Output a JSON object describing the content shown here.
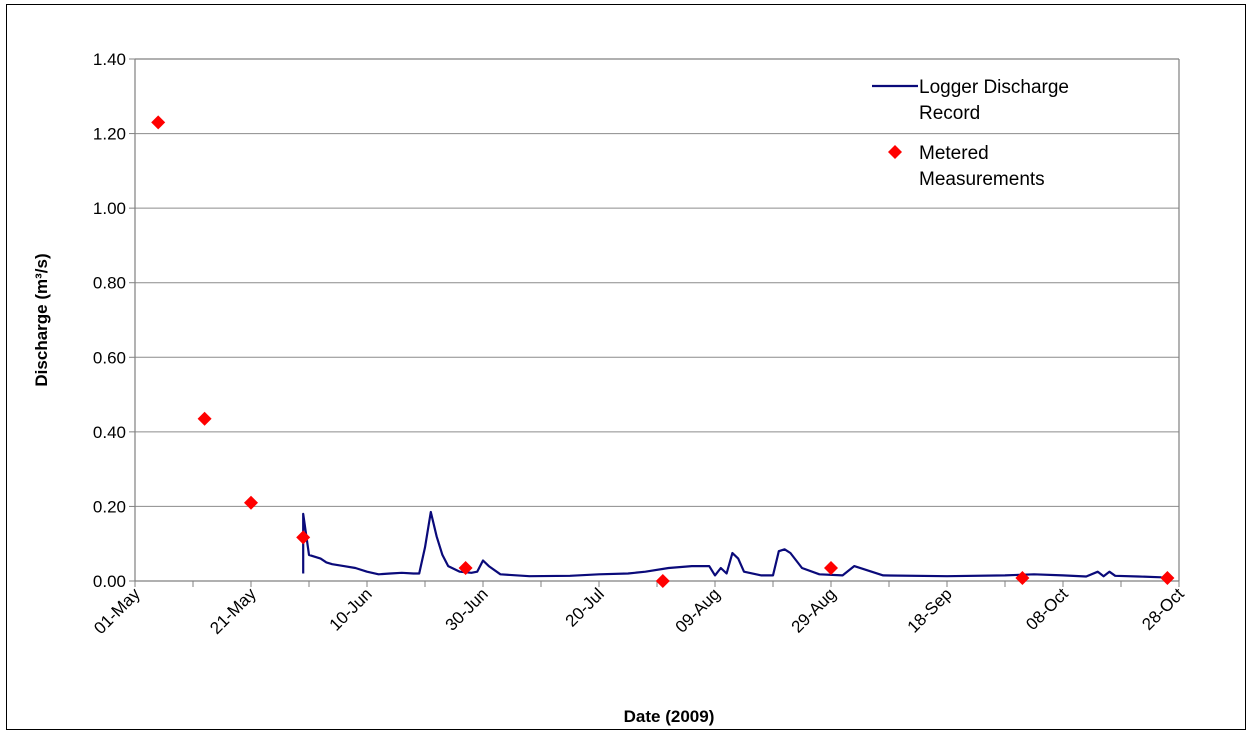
{
  "chart_data": {
    "type": "line",
    "title": "",
    "xlabel": "Date (2009)",
    "ylabel": "Discharge (m³/s)",
    "ylim": [
      0,
      1.4
    ],
    "yticks": [
      "0.00",
      "0.20",
      "0.40",
      "0.60",
      "0.80",
      "1.00",
      "1.20",
      "1.40"
    ],
    "xlim": [
      "2009-05-01",
      "2009-10-28"
    ],
    "xticks": [
      {
        "date": "2009-05-01",
        "label": "01-May"
      },
      {
        "date": "2009-05-21",
        "label": "21-May"
      },
      {
        "date": "2009-06-10",
        "label": "10-Jun"
      },
      {
        "date": "2009-06-30",
        "label": "30-Jun"
      },
      {
        "date": "2009-07-20",
        "label": "20-Jul"
      },
      {
        "date": "2009-08-09",
        "label": "09-Aug"
      },
      {
        "date": "2009-08-29",
        "label": "29-Aug"
      },
      {
        "date": "2009-09-18",
        "label": "18-Sep"
      },
      {
        "date": "2009-10-08",
        "label": "08-Oct"
      },
      {
        "date": "2009-10-28",
        "label": "28-Oct"
      }
    ],
    "grid": "horizontal",
    "legend_position": "top-right",
    "series": [
      {
        "name": "Logger Discharge Record",
        "style": "line",
        "color": "#0a0a7a",
        "points": [
          {
            "x": "2009-05-30",
            "y": 0.02
          },
          {
            "x": "2009-05-30",
            "y": 0.18
          },
          {
            "x": "2009-05-31",
            "y": 0.07
          },
          {
            "x": "2009-06-02",
            "y": 0.06
          },
          {
            "x": "2009-06-03",
            "y": 0.05
          },
          {
            "x": "2009-06-04",
            "y": 0.045
          },
          {
            "x": "2009-06-06",
            "y": 0.04
          },
          {
            "x": "2009-06-08",
            "y": 0.035
          },
          {
            "x": "2009-06-10",
            "y": 0.025
          },
          {
            "x": "2009-06-12",
            "y": 0.018
          },
          {
            "x": "2009-06-14",
            "y": 0.02
          },
          {
            "x": "2009-06-16",
            "y": 0.022
          },
          {
            "x": "2009-06-18",
            "y": 0.02
          },
          {
            "x": "2009-06-19",
            "y": 0.02
          },
          {
            "x": "2009-06-20",
            "y": 0.09
          },
          {
            "x": "2009-06-21",
            "y": 0.185
          },
          {
            "x": "2009-06-22",
            "y": 0.12
          },
          {
            "x": "2009-06-23",
            "y": 0.07
          },
          {
            "x": "2009-06-24",
            "y": 0.04
          },
          {
            "x": "2009-06-26",
            "y": 0.025
          },
          {
            "x": "2009-06-28",
            "y": 0.022
          },
          {
            "x": "2009-06-29",
            "y": 0.025
          },
          {
            "x": "2009-06-30",
            "y": 0.055
          },
          {
            "x": "2009-07-01",
            "y": 0.04
          },
          {
            "x": "2009-07-03",
            "y": 0.018
          },
          {
            "x": "2009-07-08",
            "y": 0.013
          },
          {
            "x": "2009-07-15",
            "y": 0.014
          },
          {
            "x": "2009-07-20",
            "y": 0.018
          },
          {
            "x": "2009-07-25",
            "y": 0.02
          },
          {
            "x": "2009-07-28",
            "y": 0.025
          },
          {
            "x": "2009-08-01",
            "y": 0.035
          },
          {
            "x": "2009-08-05",
            "y": 0.04
          },
          {
            "x": "2009-08-08",
            "y": 0.04
          },
          {
            "x": "2009-08-09",
            "y": 0.015
          },
          {
            "x": "2009-08-10",
            "y": 0.035
          },
          {
            "x": "2009-08-11",
            "y": 0.02
          },
          {
            "x": "2009-08-12",
            "y": 0.075
          },
          {
            "x": "2009-08-13",
            "y": 0.06
          },
          {
            "x": "2009-08-14",
            "y": 0.025
          },
          {
            "x": "2009-08-17",
            "y": 0.015
          },
          {
            "x": "2009-08-19",
            "y": 0.015
          },
          {
            "x": "2009-08-20",
            "y": 0.08
          },
          {
            "x": "2009-08-21",
            "y": 0.085
          },
          {
            "x": "2009-08-22",
            "y": 0.075
          },
          {
            "x": "2009-08-24",
            "y": 0.035
          },
          {
            "x": "2009-08-27",
            "y": 0.018
          },
          {
            "x": "2009-08-31",
            "y": 0.015
          },
          {
            "x": "2009-09-02",
            "y": 0.04
          },
          {
            "x": "2009-09-04",
            "y": 0.03
          },
          {
            "x": "2009-09-07",
            "y": 0.015
          },
          {
            "x": "2009-09-18",
            "y": 0.013
          },
          {
            "x": "2009-09-28",
            "y": 0.015
          },
          {
            "x": "2009-10-03",
            "y": 0.018
          },
          {
            "x": "2009-10-08",
            "y": 0.015
          },
          {
            "x": "2009-10-12",
            "y": 0.012
          },
          {
            "x": "2009-10-14",
            "y": 0.025
          },
          {
            "x": "2009-10-15",
            "y": 0.013
          },
          {
            "x": "2009-10-16",
            "y": 0.025
          },
          {
            "x": "2009-10-17",
            "y": 0.014
          },
          {
            "x": "2009-10-21",
            "y": 0.012
          },
          {
            "x": "2009-10-25",
            "y": 0.01
          }
        ]
      },
      {
        "name": "Metered Measurements",
        "style": "marker",
        "marker": "diamond",
        "color": "#ff0000",
        "points": [
          {
            "x": "2009-05-05",
            "y": 1.23
          },
          {
            "x": "2009-05-13",
            "y": 0.435
          },
          {
            "x": "2009-05-21",
            "y": 0.21
          },
          {
            "x": "2009-05-30",
            "y": 0.117
          },
          {
            "x": "2009-06-27",
            "y": 0.035
          },
          {
            "x": "2009-07-31",
            "y": 0.0
          },
          {
            "x": "2009-08-29",
            "y": 0.035
          },
          {
            "x": "2009-10-01",
            "y": 0.008
          },
          {
            "x": "2009-10-26",
            "y": 0.008
          }
        ]
      }
    ],
    "legend": [
      {
        "label_lines": [
          "Logger Discharge",
          "Record"
        ],
        "symbol": "line",
        "color": "#0a0a7a"
      },
      {
        "label_lines": [
          "Metered",
          "Measurements"
        ],
        "symbol": "diamond",
        "color": "#ff0000"
      }
    ]
  }
}
